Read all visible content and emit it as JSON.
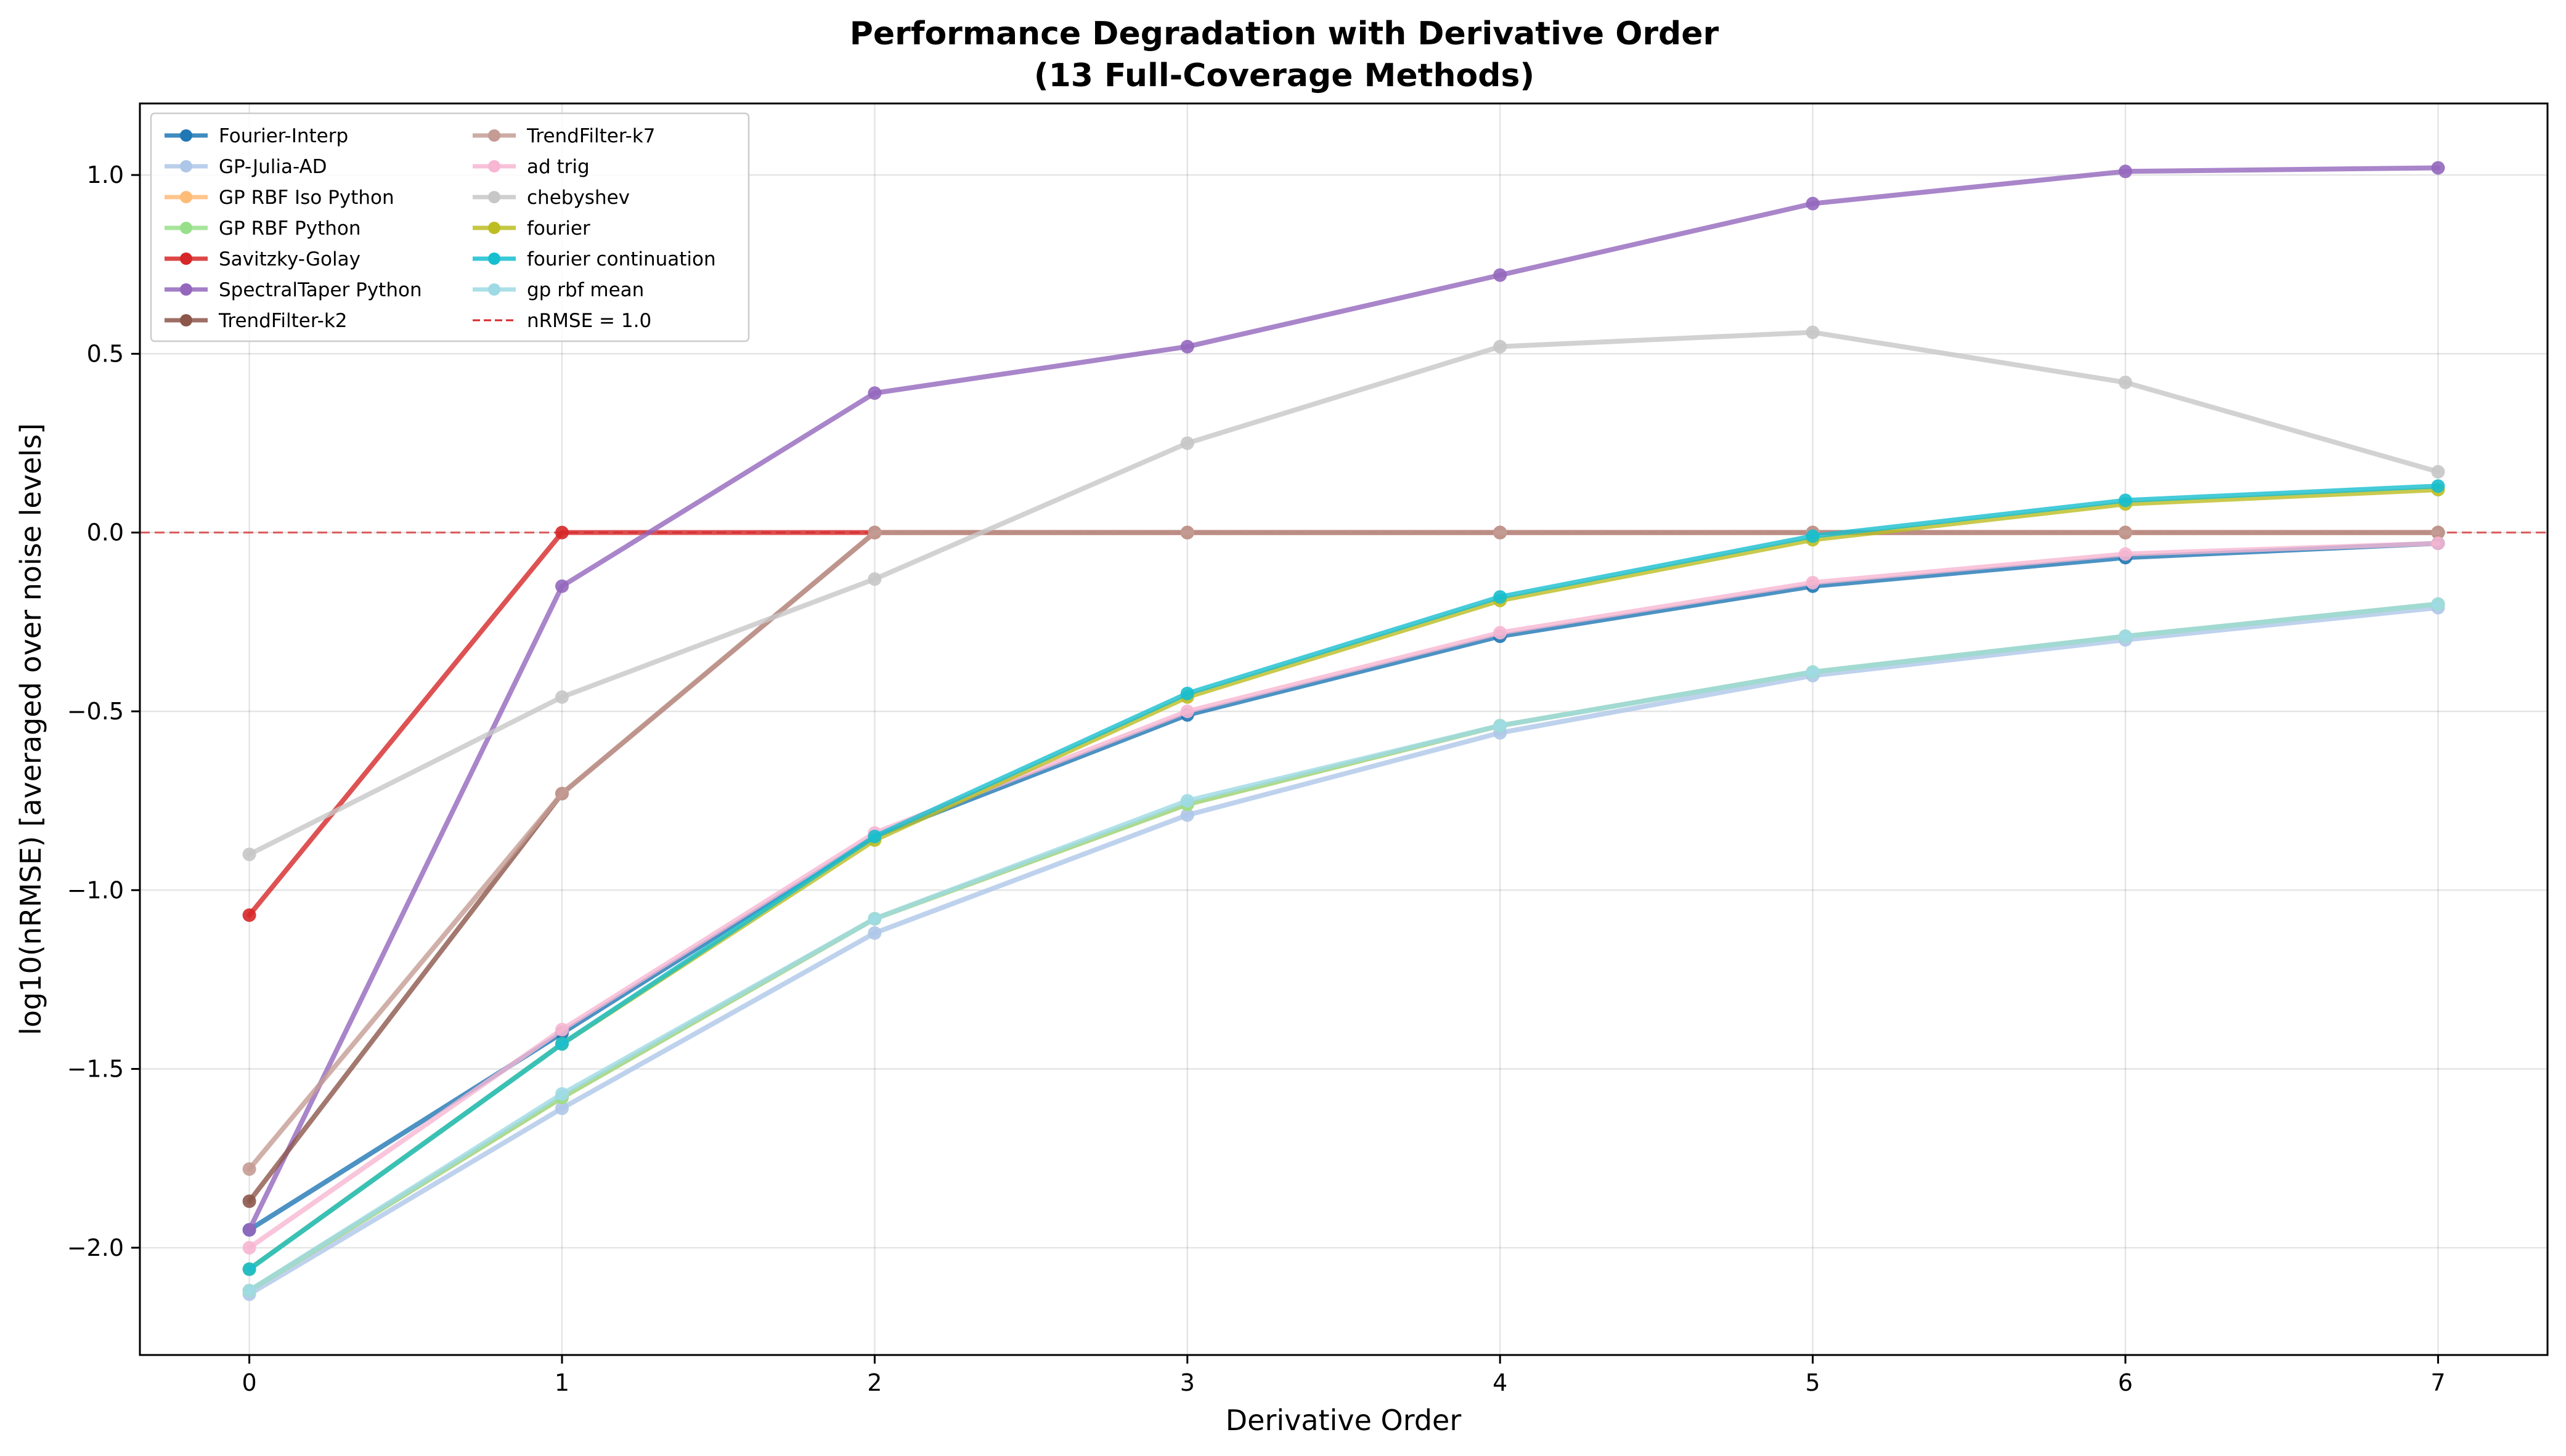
{
  "chart_data": {
    "type": "line",
    "title": "Performance Degradation with Derivative Order",
    "subtitle": "(13 Full-Coverage Methods)",
    "xlabel": "Derivative Order",
    "ylabel": "log10(nRMSE) [averaged over noise levels]",
    "xlim": [
      -0.35,
      7.35
    ],
    "ylim": [
      -2.3,
      1.2
    ],
    "xticks": [
      "0",
      "1",
      "2",
      "3",
      "4",
      "5",
      "6",
      "7"
    ],
    "yticks": [
      "−2.0",
      "−1.5",
      "−1.0",
      "−0.5",
      "0.0",
      "0.5",
      "1.0"
    ],
    "grid": true,
    "legend_position": "upper-left",
    "x": [
      0,
      1,
      2,
      3,
      4,
      5,
      6,
      7
    ],
    "series": [
      {
        "name": "Fourier-Interp",
        "color": "#1f77b4",
        "values": [
          -1.95,
          -1.4,
          -0.85,
          -0.51,
          -0.29,
          -0.15,
          -0.07,
          -0.03
        ]
      },
      {
        "name": "GP-Julia-AD",
        "color": "#aec7e8",
        "values": [
          -2.13,
          -1.61,
          -1.12,
          -0.79,
          -0.56,
          -0.4,
          -0.3,
          -0.21
        ]
      },
      {
        "name": "GP RBF Iso Python",
        "color": "#ffbb78",
        "values": [
          -2.12,
          -1.58,
          -1.08,
          -0.76,
          -0.54,
          -0.39,
          -0.29,
          -0.2
        ]
      },
      {
        "name": "GP RBF Python",
        "color": "#98df8a",
        "values": [
          -2.12,
          -1.58,
          -1.08,
          -0.76,
          -0.54,
          -0.39,
          -0.29,
          -0.2
        ]
      },
      {
        "name": "Savitzky-Golay",
        "color": "#d62728",
        "values": [
          -1.07,
          0.0,
          0.0,
          0.0,
          0.0,
          0.0,
          0.0,
          0.0
        ]
      },
      {
        "name": "SpectralTaper Python",
        "color": "#9467bd",
        "values": [
          -1.95,
          -0.15,
          0.39,
          0.52,
          0.72,
          0.92,
          1.01,
          1.02
        ]
      },
      {
        "name": "TrendFilter-k2",
        "color": "#8c564b",
        "values": [
          -1.87,
          -0.73,
          0.0,
          0.0,
          0.0,
          0.0,
          0.0,
          0.0
        ]
      },
      {
        "name": "TrendFilter-k7",
        "color": "#c49c94",
        "values": [
          -1.78,
          -0.73,
          0.0,
          0.0,
          0.0,
          0.0,
          0.0,
          0.0
        ]
      },
      {
        "name": "ad trig",
        "color": "#f7b6d2",
        "values": [
          -2.0,
          -1.39,
          -0.84,
          -0.5,
          -0.28,
          -0.14,
          -0.06,
          -0.03
        ]
      },
      {
        "name": "chebyshev",
        "color": "#c7c7c7",
        "values": [
          -0.9,
          -0.46,
          -0.13,
          0.25,
          0.52,
          0.56,
          0.42,
          0.17
        ]
      },
      {
        "name": "fourier",
        "color": "#bcbd22",
        "values": [
          -2.06,
          -1.43,
          -0.86,
          -0.46,
          -0.19,
          -0.02,
          0.08,
          0.12
        ]
      },
      {
        "name": "fourier continuation",
        "color": "#17becf",
        "values": [
          -2.06,
          -1.43,
          -0.85,
          -0.45,
          -0.18,
          -0.01,
          0.09,
          0.13
        ]
      },
      {
        "name": "gp rbf mean",
        "color": "#9edae5",
        "values": [
          -2.12,
          -1.57,
          -1.08,
          -0.75,
          -0.54,
          -0.39,
          -0.29,
          -0.2
        ]
      }
    ],
    "reference_line": {
      "name": "nRMSE = 1.0",
      "y": 0.0,
      "color": "#d62728",
      "style": "dashed"
    }
  }
}
